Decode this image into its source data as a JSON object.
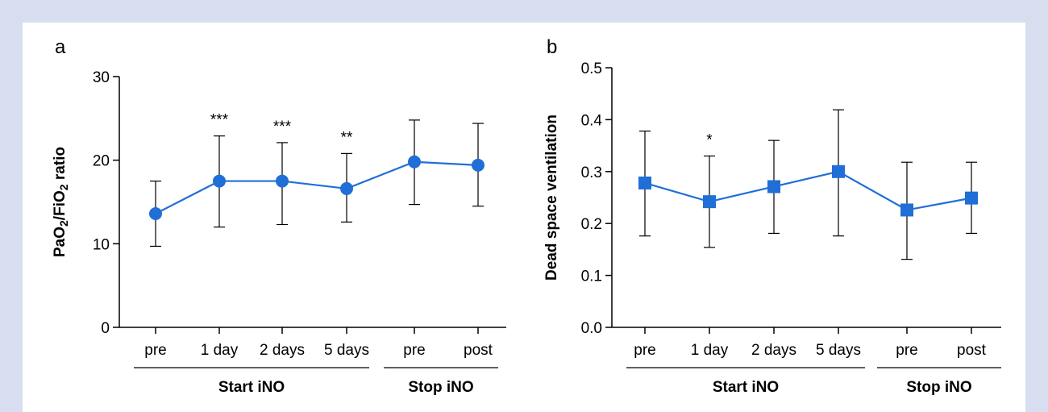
{
  "colors": {
    "series": "#1f6fd6",
    "axis": "#000000",
    "background": "#d6def0"
  },
  "chart_data": [
    {
      "type": "line",
      "panel": "a",
      "ylabel_main": "PaO",
      "ylabel_sub1": "2",
      "ylabel_mid": "/FiO",
      "ylabel_sub2": "2",
      "ylabel_tail": " ratio",
      "ylim": [
        0,
        30
      ],
      "yticks": [
        "0",
        "10",
        "20",
        "30"
      ],
      "categories": [
        "pre",
        "1 day",
        "2 days",
        "5 days",
        "pre",
        "post"
      ],
      "groups": [
        {
          "label": "Start iNO",
          "range": [
            0,
            3
          ]
        },
        {
          "label": "Stop iNO",
          "range": [
            4,
            5
          ]
        }
      ],
      "marker": "circle",
      "series": [
        {
          "values": [
            13.6,
            17.5,
            17.5,
            16.6,
            19.8,
            19.4
          ],
          "err_low": [
            9.7,
            12.0,
            12.3,
            12.6,
            14.7,
            14.5
          ],
          "err_high": [
            17.5,
            22.9,
            22.1,
            20.8,
            24.8,
            24.4
          ]
        }
      ],
      "annotations": [
        "",
        "***",
        "***",
        "**",
        "",
        ""
      ]
    },
    {
      "type": "line",
      "panel": "b",
      "ylabel": "Dead space ventilation",
      "ylim": [
        0,
        0.5
      ],
      "yticks": [
        "0.0",
        "0.1",
        "0.2",
        "0.3",
        "0.4",
        "0.5"
      ],
      "categories": [
        "pre",
        "1 day",
        "2 days",
        "5 days",
        "pre",
        "post"
      ],
      "groups": [
        {
          "label": "Start iNO",
          "range": [
            0,
            3
          ]
        },
        {
          "label": "Stop iNO",
          "range": [
            4,
            5
          ]
        }
      ],
      "marker": "square",
      "series": [
        {
          "values": [
            0.278,
            0.242,
            0.271,
            0.3,
            0.226,
            0.249
          ],
          "err_low": [
            0.176,
            0.154,
            0.181,
            0.176,
            0.131,
            0.181
          ],
          "err_high": [
            0.378,
            0.33,
            0.36,
            0.419,
            0.318,
            0.318
          ]
        }
      ],
      "annotations": [
        "",
        "*",
        "",
        "",
        "",
        ""
      ]
    }
  ]
}
